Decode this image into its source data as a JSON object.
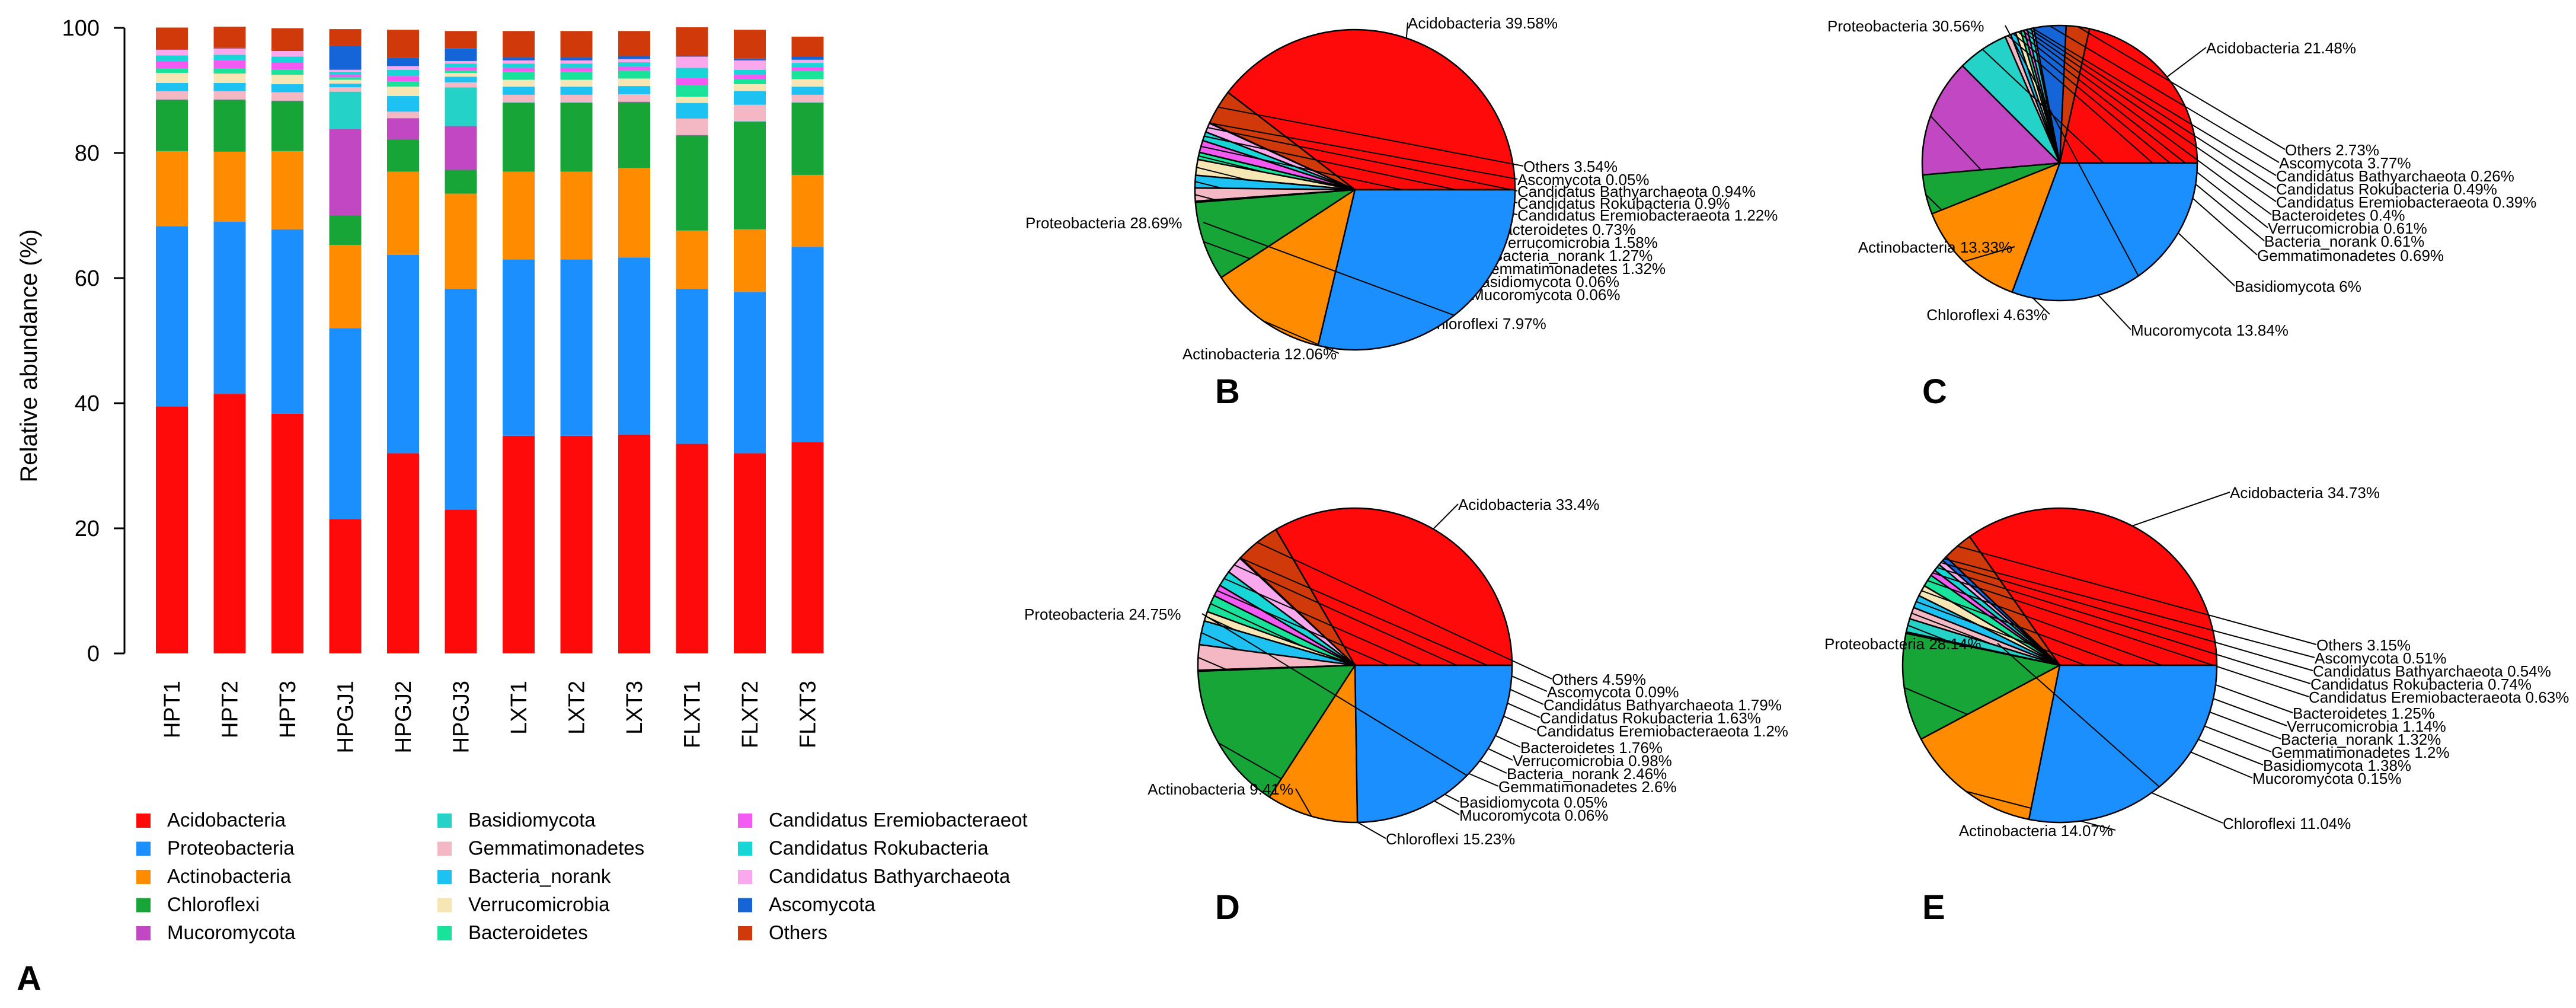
{
  "figure": {
    "panel_letters": [
      "A",
      "B",
      "C",
      "D",
      "E"
    ]
  },
  "colors": {
    "Acidobacteria": "#ff0a0a",
    "Proteobacteria": "#1c8fff",
    "Actinobacteria": "#ff8c00",
    "Chloroflexi": "#18a537",
    "Mucoromycota": "#c247c2",
    "Basidiomycota": "#24d2c8",
    "Gemmatimonadetes": "#f3b8c4",
    "Bacteria_norank": "#1ec2f2",
    "Verrucomicrobia": "#f6e6b4",
    "Bacteroidetes": "#19e39a",
    "Candidatus Eremiobacteraeota": "#f35af3",
    "Candidatus Rokubacteria": "#19d6d6",
    "Candidatus Bathyarchaeota": "#f9a8ee",
    "Ascomycota": "#1565d8",
    "Others": "#d03a0a"
  },
  "chart_data": [
    {
      "id": "A",
      "type": "bar",
      "stacked": true,
      "ylabel": "Relative abundance (%)",
      "ylim": [
        0,
        100
      ],
      "yticks": [
        0,
        20,
        40,
        60,
        80,
        100
      ],
      "categories": [
        "HPT1",
        "HPT2",
        "HPT3",
        "HPGJ1",
        "HPGJ2",
        "HPGJ3",
        "LXT1",
        "LXT2",
        "LXT3",
        "FLXT1",
        "FLXT2",
        "FLXT3"
      ],
      "legend": [
        "Acidobacteria",
        "Proteobacteria",
        "Actinobacteria",
        "Chloroflexi",
        "Mucoromycota",
        "Basidiomycota",
        "Gemmatimonadetes",
        "Bacteria_norank",
        "Verrucomicrobia",
        "Bacteroidetes",
        "Candidatus Eremiobacteraeot",
        "Candidatus Rokubacteria",
        "Candidatus Bathyarchaeota",
        "Ascomycota",
        "Others"
      ],
      "series": [
        {
          "name": "Acidobacteria",
          "values": [
            39.5,
            41.5,
            38.3,
            21.5,
            32.0,
            23.0,
            34.8,
            34.8,
            35.0,
            33.5,
            32.0,
            33.8
          ]
        },
        {
          "name": "Proteobacteria",
          "values": [
            28.8,
            27.5,
            29.5,
            30.5,
            31.7,
            35.3,
            28.2,
            28.2,
            28.3,
            24.8,
            25.8,
            31.2
          ]
        },
        {
          "name": "Actinobacteria",
          "values": [
            12.0,
            11.2,
            12.5,
            13.3,
            13.3,
            15.2,
            14.0,
            14.0,
            14.3,
            9.3,
            10.0,
            11.5
          ]
        },
        {
          "name": "Chloroflexi",
          "values": [
            8.2,
            8.3,
            8.0,
            4.7,
            5.2,
            3.8,
            11.0,
            11.0,
            10.5,
            15.2,
            17.2,
            11.5
          ]
        },
        {
          "name": "Mucoromycota",
          "values": [
            0.05,
            0.05,
            0.05,
            13.8,
            3.3,
            7.0,
            0.05,
            0.05,
            0.05,
            0.05,
            0.05,
            0.05
          ]
        },
        {
          "name": "Basidiomycota",
          "values": [
            0.05,
            0.05,
            0.05,
            6.0,
            0.1,
            6.2,
            0.05,
            0.05,
            0.05,
            0.05,
            0.05,
            0.05
          ]
        },
        {
          "name": "Gemmatimonadetes",
          "values": [
            1.3,
            1.3,
            1.3,
            0.7,
            1.0,
            0.8,
            1.2,
            1.2,
            1.2,
            2.6,
            2.6,
            1.2
          ]
        },
        {
          "name": "Bacteria_norank",
          "values": [
            1.3,
            1.3,
            1.3,
            0.6,
            2.5,
            0.9,
            1.3,
            1.3,
            1.3,
            2.5,
            2.2,
            1.3
          ]
        },
        {
          "name": "Verrucomicrobia",
          "values": [
            1.6,
            1.5,
            1.5,
            0.6,
            1.5,
            0.6,
            1.1,
            1.1,
            1.2,
            1.0,
            1.1,
            1.2
          ]
        },
        {
          "name": "Bacteroidetes",
          "values": [
            0.7,
            0.8,
            0.8,
            0.4,
            0.8,
            0.4,
            1.3,
            1.3,
            1.3,
            1.8,
            0.8,
            1.3
          ]
        },
        {
          "name": "Candidatus Eremiobacteraeota",
          "values": [
            1.2,
            1.3,
            1.2,
            0.4,
            0.9,
            0.5,
            0.6,
            0.6,
            0.6,
            1.2,
            0.7,
            0.6
          ]
        },
        {
          "name": "Candidatus Rokubacteria",
          "values": [
            0.9,
            0.9,
            0.9,
            0.5,
            1.0,
            0.6,
            0.7,
            0.7,
            0.7,
            1.6,
            0.8,
            0.7
          ]
        },
        {
          "name": "Candidatus Bathyarchaeota",
          "values": [
            0.9,
            1.0,
            0.9,
            0.3,
            0.6,
            0.4,
            0.5,
            0.5,
            0.5,
            1.8,
            1.5,
            0.5
          ]
        },
        {
          "name": "Ascomycota",
          "values": [
            0.05,
            0.1,
            0.05,
            3.8,
            1.3,
            2.0,
            0.5,
            0.5,
            0.5,
            0.1,
            0.3,
            0.5
          ]
        },
        {
          "name": "Others",
          "values": [
            3.5,
            3.4,
            3.6,
            2.7,
            4.5,
            2.8,
            4.2,
            4.2,
            4.0,
            4.6,
            4.6,
            3.2
          ]
        }
      ]
    },
    {
      "id": "B",
      "type": "pie",
      "slices": [
        {
          "name": "Acidobacteria",
          "value": 39.58,
          "label": "Acidobacteria 39.58%"
        },
        {
          "name": "Others",
          "value": 3.54,
          "label": "Others 3.54%"
        },
        {
          "name": "Ascomycota",
          "value": 0.05,
          "label": "Ascomycota 0.05%"
        },
        {
          "name": "Candidatus Bathyarchaeota",
          "value": 0.94,
          "label": "Candidatus Bathyarchaeota 0.94%"
        },
        {
          "name": "Candidatus Rokubacteria",
          "value": 0.9,
          "label": "Candidatus Rokubacteria 0.9%"
        },
        {
          "name": "Candidatus Eremiobacteraeota",
          "value": 1.22,
          "label": "Candidatus Eremiobacteraeota 1.22%"
        },
        {
          "name": "Bacteroidetes",
          "value": 0.73,
          "label": "Bacteroidetes 0.73%"
        },
        {
          "name": "Verrucomicrobia",
          "value": 1.58,
          "label": "Verrucomicrobia 1.58%"
        },
        {
          "name": "Bacteria_norank",
          "value": 1.27,
          "label": "Bacteria_norank 1.27%"
        },
        {
          "name": "Gemmatimonadetes",
          "value": 1.32,
          "label": "Gemmatimonadetes 1.32%"
        },
        {
          "name": "Basidiomycota",
          "value": 0.06,
          "label": "Basidiomycota 0.06%"
        },
        {
          "name": "Mucoromycota",
          "value": 0.06,
          "label": "Mucoromycota 0.06%"
        },
        {
          "name": "Chloroflexi",
          "value": 7.97,
          "label": "Chloroflexi 7.97%"
        },
        {
          "name": "Actinobacteria",
          "value": 12.06,
          "label": "Actinobacteria 12.06%"
        },
        {
          "name": "Proteobacteria",
          "value": 28.69,
          "label": "Proteobacteria 28.69%"
        }
      ]
    },
    {
      "id": "C",
      "type": "pie",
      "slices": [
        {
          "name": "Acidobacteria",
          "value": 21.48,
          "label": "Acidobacteria 21.48%"
        },
        {
          "name": "Others",
          "value": 2.73,
          "label": "Others 2.73%"
        },
        {
          "name": "Ascomycota",
          "value": 3.77,
          "label": "Ascomycota 3.77%"
        },
        {
          "name": "Candidatus Bathyarchaeota",
          "value": 0.26,
          "label": "Candidatus Bathyarchaeota 0.26%"
        },
        {
          "name": "Candidatus Rokubacteria",
          "value": 0.49,
          "label": "Candidatus Rokubacteria 0.49%"
        },
        {
          "name": "Candidatus Eremiobacteraeota",
          "value": 0.39,
          "label": "Candidatus Eremiobacteraeota 0.39%"
        },
        {
          "name": "Bacteroidetes",
          "value": 0.4,
          "label": "Bacteroidetes 0.4%"
        },
        {
          "name": "Verrucomicrobia",
          "value": 0.61,
          "label": "Verrucomicrobia 0.61%"
        },
        {
          "name": "Bacteria_norank",
          "value": 0.61,
          "label": "Bacteria_norank 0.61%"
        },
        {
          "name": "Gemmatimonadetes",
          "value": 0.69,
          "label": "Gemmatimonadetes 0.69%"
        },
        {
          "name": "Basidiomycota",
          "value": 6,
          "label": "Basidiomycota 6%"
        },
        {
          "name": "Mucoromycota",
          "value": 13.84,
          "label": "Mucoromycota 13.84%"
        },
        {
          "name": "Chloroflexi",
          "value": 4.63,
          "label": "Chloroflexi 4.63%"
        },
        {
          "name": "Actinobacteria",
          "value": 13.33,
          "label": "Actinobacteria 13.33%"
        },
        {
          "name": "Proteobacteria",
          "value": 30.56,
          "label": "Proteobacteria 30.56%"
        }
      ]
    },
    {
      "id": "D",
      "type": "pie",
      "slices": [
        {
          "name": "Acidobacteria",
          "value": 33.4,
          "label": "Acidobacteria 33.4%"
        },
        {
          "name": "Others",
          "value": 4.59,
          "label": "Others 4.59%"
        },
        {
          "name": "Ascomycota",
          "value": 0.09,
          "label": "Ascomycota 0.09%"
        },
        {
          "name": "Candidatus Bathyarchaeota",
          "value": 1.79,
          "label": "Candidatus Bathyarchaeota 1.79%"
        },
        {
          "name": "Candidatus Rokubacteria",
          "value": 1.63,
          "label": "Candidatus Rokubacteria 1.63%"
        },
        {
          "name": "Candidatus Eremiobacteraeota",
          "value": 1.2,
          "label": "Candidatus Eremiobacteraeota 1.2%"
        },
        {
          "name": "Bacteroidetes",
          "value": 1.76,
          "label": "Bacteroidetes 1.76%"
        },
        {
          "name": "Verrucomicrobia",
          "value": 0.98,
          "label": "Verrucomicrobia 0.98%"
        },
        {
          "name": "Bacteria_norank",
          "value": 2.46,
          "label": "Bacteria_norank 2.46%"
        },
        {
          "name": "Gemmatimonadetes",
          "value": 2.6,
          "label": "Gemmatimonadetes 2.6%"
        },
        {
          "name": "Basidiomycota",
          "value": 0.05,
          "label": "Basidiomycota 0.05%"
        },
        {
          "name": "Mucoromycota",
          "value": 0.06,
          "label": "Mucoromycota 0.06%"
        },
        {
          "name": "Chloroflexi",
          "value": 15.23,
          "label": "Chloroflexi 15.23%"
        },
        {
          "name": "Actinobacteria",
          "value": 9.41,
          "label": "Actinobacteria 9.41%"
        },
        {
          "name": "Proteobacteria",
          "value": 24.75,
          "label": "Proteobacteria 24.75%"
        }
      ]
    },
    {
      "id": "E",
      "type": "pie",
      "slices": [
        {
          "name": "Acidobacteria",
          "value": 34.73,
          "label": "Acidobacteria 34.73%"
        },
        {
          "name": "Others",
          "value": 3.15,
          "label": "Others 3.15%"
        },
        {
          "name": "Ascomycota",
          "value": 0.51,
          "label": "Ascomycota 0.51%"
        },
        {
          "name": "Candidatus Bathyarchaeota",
          "value": 0.54,
          "label": "Candidatus Bathyarchaeota 0.54%"
        },
        {
          "name": "Candidatus Rokubacteria",
          "value": 0.74,
          "label": "Candidatus Rokubacteria 0.74%"
        },
        {
          "name": "Candidatus Eremiobacteraeota",
          "value": 0.63,
          "label": "Candidatus Eremiobacteraeota 0.63%"
        },
        {
          "name": "Bacteroidetes",
          "value": 1.25,
          "label": "Bacteroidetes 1.25%"
        },
        {
          "name": "Verrucomicrobia",
          "value": 1.14,
          "label": "Verrucomicrobia 1.14%"
        },
        {
          "name": "Bacteria_norank",
          "value": 1.32,
          "label": "Bacteria_norank 1.32%"
        },
        {
          "name": "Gemmatimonadetes",
          "value": 1.2,
          "label": "Gemmatimonadetes 1.2%"
        },
        {
          "name": "Basidiomycota",
          "value": 1.38,
          "label": "Basidiomycota 1.38%"
        },
        {
          "name": "Mucoromycota",
          "value": 0.15,
          "label": "Mucoromycota 0.15%"
        },
        {
          "name": "Chloroflexi",
          "value": 11.04,
          "label": "Chloroflexi 11.04%"
        },
        {
          "name": "Actinobacteria",
          "value": 14.07,
          "label": "Actinobacteria 14.07%"
        },
        {
          "name": "Proteobacteria",
          "value": 28.14,
          "label": "Proteobacteria 28.14%"
        }
      ]
    }
  ]
}
